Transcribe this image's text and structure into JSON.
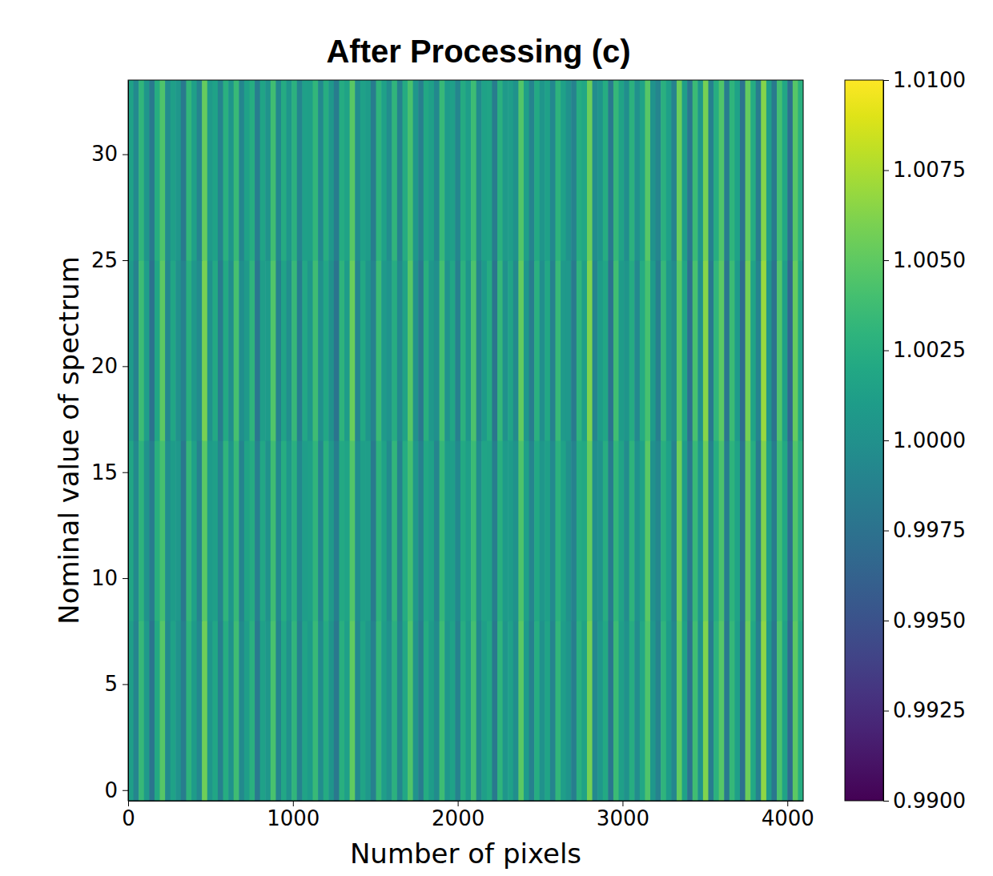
{
  "chart_data": {
    "type": "heatmap",
    "title": "After Processing (c)",
    "x_label": "Number of pixels",
    "y_label": "Nominal value of spectrum",
    "xlim": [
      0,
      4096
    ],
    "ylim": [
      -0.5,
      33.5
    ],
    "xticks": [
      0,
      1000,
      2000,
      3000,
      4000
    ],
    "yticks": [
      0,
      5,
      10,
      15,
      20,
      25,
      30
    ],
    "cells": [
      [
        1.0012,
        0.9991,
        1.0034,
        1.0008,
        0.9978,
        1.0021,
        1.0047,
        0.9996,
        1.0015,
        1.0003,
        0.9984,
        1.0029,
        1.001,
        0.9993,
        1.0056,
        1.0005,
        1.0018,
        0.9987,
        1.0024,
        1.0001,
        1.0038,
        0.9995,
        1.0011,
        1.0027,
        0.9982,
        1.0014,
        1.0006,
        1.0042,
        0.999,
        1.0019,
        1.0002,
        1.0031,
        0.9988,
        1.0016,
        1.0009,
        1.0035,
        0.9997,
        1.0022,
        1.0004,
        0.998,
        1.0026,
        1.0013,
        1.0051,
        0.9994,
        1.0017,
        1.0007,
        0.9986,
        1.0033,
        1.0011,
        1.0,
        1.0028,
        0.9992,
        1.0019,
        1.0045,
        1.0003,
        0.9983,
        1.0023,
        1.001,
        0.9996,
        1.0037,
        1.0006,
        1.0015,
        0.9989,
        1.0025,
        1.0008,
        1.004,
        0.9993,
        1.0012,
        1.002,
        0.9981,
        1.003,
        1.0005,
        1.0014,
        0.9998,
        1.0049,
        1.0009,
        0.9987,
        1.0024,
        1.0002,
        1.0017,
        0.999,
        1.0032,
        1.0011,
        1.0004,
        0.9985,
        1.0027,
        1.0016,
        1.0058,
        0.9994,
        1.0007,
        1.0021,
        0.9979,
        1.0036,
        1.0013,
        1.0001,
        1.0025,
        0.9997,
        1.0019,
        1.0044,
        1.0006,
        0.9988,
        1.003,
        1.001,
        0.9992,
        1.0052,
        1.0015,
        0.9976,
        1.0039,
        1.0003,
        1.0061,
        0.9984,
        1.0028,
        1.0047,
        0.9981,
        1.0033,
        1.0012,
        0.9973,
        1.0055,
        1.002,
        0.9987,
        1.0066,
        1.0008,
        0.9979,
        1.0043,
        1.0016,
        0.997,
        1.005,
        1.0024
      ],
      [
        1.0018,
        0.9995,
        1.0029,
        1.0003,
        0.9983,
        1.0026,
        1.0041,
        0.9999,
        1.001,
        1.0007,
        0.998,
        1.0033,
        1.0014,
        0.9988,
        1.0049,
        1.0009,
        1.0012,
        0.9991,
        1.003,
        1.0005,
        1.0034,
        0.999,
        1.0016,
        1.0022,
        0.9986,
        1.0019,
        1.0001,
        1.0038,
        0.9994,
        1.0024,
        1.0006,
        1.0027,
        0.9993,
        1.0011,
        1.0013,
        1.0031,
        0.9992,
        1.0027,
        1.0008,
        0.9985,
        1.0021,
        1.0017,
        1.0046,
        0.9998,
        1.0012,
        1.0011,
        0.9982,
        1.0029,
        1.0015,
        0.9996,
        1.0032,
        0.9988,
        1.0023,
        1.004,
        1.0007,
        0.9987,
        1.0019,
        1.0014,
        0.9991,
        1.0033,
        1.001,
        1.0011,
        0.9993,
        1.0021,
        1.0012,
        1.0036,
        0.9997,
        1.0017,
        1.0016,
        0.9985,
        1.0026,
        1.0009,
        1.001,
        1.0002,
        1.0044,
        1.0013,
        0.9991,
        1.002,
        1.0006,
        1.0013,
        0.9994,
        1.0028,
        1.0015,
        1.0,
        0.9989,
        1.0023,
        1.002,
        1.0053,
        0.9998,
        1.0003,
        1.0025,
        0.9983,
        1.0032,
        1.0017,
        0.9997,
        1.0029,
        1.0001,
        1.0015,
        1.0048,
        1.0002,
        0.9992,
        1.0026,
        1.0014,
        0.9988,
        1.0057,
        1.0011,
        0.998,
        1.0035,
        1.0007,
        1.0056,
        0.9988,
        1.0024,
        1.0043,
        0.9985,
        1.0029,
        1.0016,
        0.9977,
        1.0051,
        1.0024,
        0.9983,
        1.0062,
        1.0012,
        0.9983,
        1.0039,
        1.002,
        0.9974,
        1.0046,
        1.0028
      ],
      [
        1.0009,
        0.9988,
        1.0037,
        1.0011,
        0.9975,
        1.0018,
        1.005,
        0.9993,
        1.0018,
        1.0,
        0.9987,
        1.0026,
        1.0007,
        0.9996,
        1.0059,
        1.0002,
        1.0021,
        0.9984,
        1.0021,
        0.9998,
        1.0041,
        0.9998,
        1.0008,
        1.003,
        0.9979,
        1.0011,
        1.0009,
        1.0045,
        0.9987,
        1.0016,
        0.9999,
        1.0034,
        0.9985,
        1.0019,
        1.0006,
        1.0038,
        1.0,
        1.0019,
        1.0001,
        0.9977,
        1.0029,
        1.001,
        1.0054,
        0.9991,
        1.002,
        1.0004,
        0.9989,
        1.0036,
        1.0008,
        1.0003,
        1.0025,
        0.9995,
        1.0016,
        1.0048,
        1.0,
        0.998,
        1.0026,
        1.0007,
        0.9999,
        1.004,
        1.0003,
        1.0018,
        0.9986,
        1.0028,
        1.0005,
        1.0043,
        0.999,
        1.0009,
        1.0023,
        0.9978,
        1.0033,
        1.0002,
        1.0017,
        0.9995,
        1.0052,
        1.0006,
        0.9984,
        1.0027,
        0.9999,
        1.002,
        0.9987,
        1.0035,
        1.0008,
        1.0007,
        0.9982,
        1.003,
        1.0013,
        1.0061,
        0.9991,
        1.001,
        1.0018,
        0.9976,
        1.0039,
        1.001,
        1.0004,
        1.0022,
        0.9994,
        1.0022,
        1.0041,
        1.0009,
        0.9985,
        1.0033,
        1.0007,
        0.9995,
        1.0049,
        1.0018,
        0.9973,
        1.0042,
        1.0,
        1.0064,
        0.9981,
        1.0031,
        1.005,
        0.9978,
        1.0036,
        1.0009,
        0.997,
        1.0058,
        1.0017,
        0.999,
        1.0069,
        1.0005,
        0.9976,
        1.0046,
        1.0013,
        0.9967,
        1.0053,
        1.0021
      ],
      [
        1.0015,
        0.9994,
        1.0031,
        1.0005,
        0.9981,
        1.0024,
        1.0044,
        0.9997,
        1.0012,
        1.0006,
        0.9981,
        1.0032,
        1.0013,
        0.999,
        1.0053,
        1.0008,
        1.0015,
        0.999,
        1.0027,
        1.0004,
        1.0035,
        0.9992,
        1.0014,
        1.0024,
        0.9985,
        1.0017,
        1.0003,
        1.0039,
        0.9993,
        1.0022,
        1.0005,
        1.0028,
        0.9991,
        1.0013,
        1.0012,
        1.0032,
        0.9994,
        1.0025,
        1.0007,
        0.9983,
        1.0023,
        1.0016,
        1.0048,
        0.9997,
        1.0014,
        1.001,
        0.9983,
        1.003,
        1.0014,
        0.9997,
        1.0031,
        0.9989,
        1.0022,
        1.0042,
        1.0006,
        0.9986,
        1.002,
        1.0013,
        0.9993,
        1.0034,
        1.0009,
        1.0012,
        0.9992,
        1.0022,
        1.0011,
        1.0037,
        0.9996,
        1.0015,
        1.0017,
        0.9984,
        1.0027,
        1.0008,
        1.0011,
        1.0001,
        1.0046,
        1.0012,
        0.999,
        1.0021,
        1.0005,
        1.0014,
        0.9993,
        1.0029,
        1.0014,
        1.0001,
        0.9988,
        1.0024,
        1.0019,
        1.0055,
        0.9997,
        1.0004,
        1.0024,
        0.9982,
        1.0033,
        1.0016,
        0.9998,
        1.0028,
        1.0,
        1.0016,
        1.0047,
        1.0003,
        0.9991,
        1.0027,
        1.0013,
        0.9989,
        1.0055,
        1.0012,
        0.9979,
        1.0036,
        1.0006,
        1.0058,
        0.9987,
        1.0025,
        1.0045,
        0.9984,
        1.003,
        1.0015,
        0.9976,
        1.0052,
        1.0023,
        0.9984,
        1.0063,
        1.0011,
        0.9982,
        1.004,
        1.0019,
        0.9973,
        1.0047,
        1.0027
      ]
    ],
    "colorbar": {
      "range": [
        0.99,
        1.01
      ],
      "ticks": [
        {
          "value": 0.99,
          "label": "0.9900"
        },
        0.9925,
        {
          "value": 0.995,
          "label": "0.9950"
        },
        0.9975,
        {
          "value": 1,
          "label": "1.0000"
        },
        1.0025,
        {
          "value": 1.005,
          "label": "1.0050"
        },
        1.0075,
        {
          "value": 1.01,
          "label": "1.0100"
        }
      ]
    }
  }
}
